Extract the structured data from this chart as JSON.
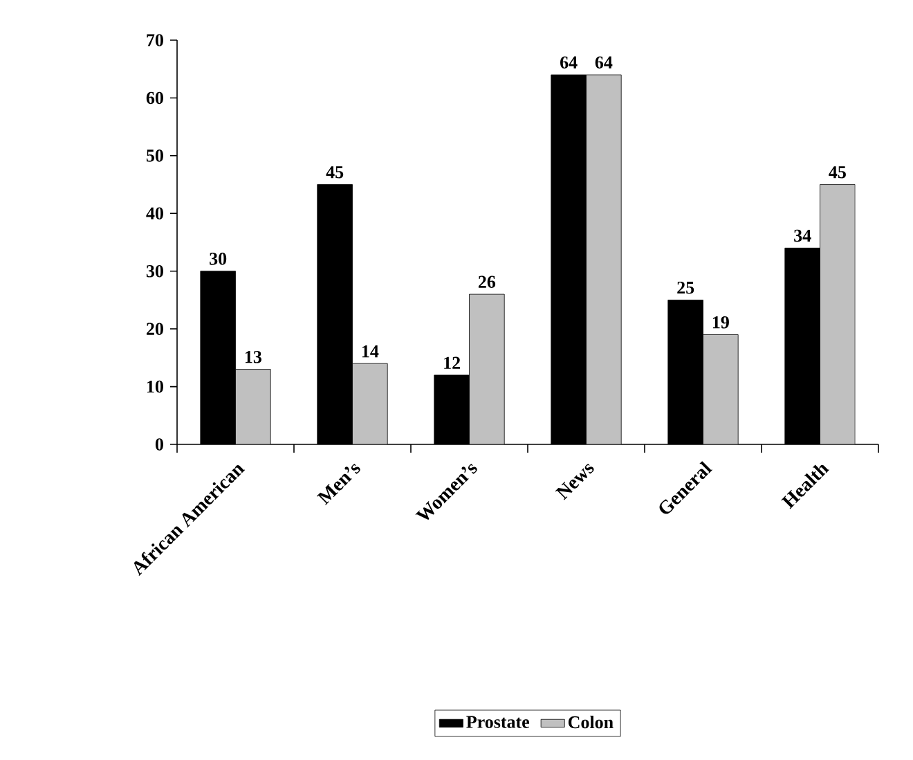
{
  "chart_data": {
    "type": "bar",
    "categories": [
      "African American",
      "Men’s",
      "Women’s",
      "News",
      "General",
      "Health"
    ],
    "series": [
      {
        "name": "Prostate",
        "color": "#000000",
        "values": [
          30,
          45,
          12,
          64,
          25,
          34
        ]
      },
      {
        "name": "Colon",
        "color": "#c0c0c0",
        "values": [
          13,
          14,
          26,
          64,
          19,
          45
        ]
      }
    ],
    "ylim": [
      0,
      70
    ],
    "yticks": [
      0,
      10,
      20,
      30,
      40,
      50,
      60,
      70
    ],
    "data_labels": true,
    "legend": "bottom",
    "grid": false
  }
}
